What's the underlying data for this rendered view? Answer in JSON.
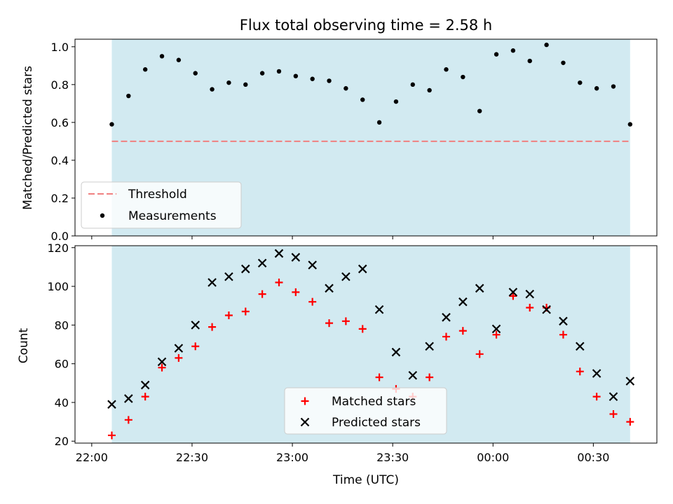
{
  "chart_data": [
    {
      "type": "scatter",
      "title": "Flux total observing time = 2.58 h",
      "ylabel": "Matched/Predicted stars",
      "xlabel": "",
      "x_unit": "minutes after 22:00 UTC",
      "xlim_minutes": [
        -5,
        169
      ],
      "ylim": [
        0,
        1.04
      ],
      "yticks": [
        0.0,
        0.2,
        0.4,
        0.6,
        0.8,
        1.0
      ],
      "ytick_labels": [
        "0.0",
        "0.2",
        "0.4",
        "0.6",
        "0.8",
        "1.0"
      ],
      "shaded_span_minutes": [
        6,
        161
      ],
      "shade_color": "#add8e6",
      "threshold": {
        "label": "Threshold",
        "value": 0.5,
        "color": "#f08080",
        "style": "dashed"
      },
      "legend": {
        "position": "lower-left",
        "entries": [
          "Threshold",
          "Measurements"
        ]
      },
      "series": [
        {
          "name": "Measurements",
          "marker": "dot",
          "color": "#000000",
          "x": [
            "22:06",
            "22:11",
            "22:16",
            "22:21",
            "22:26",
            "22:31",
            "22:36",
            "22:41",
            "22:46",
            "22:51",
            "22:56",
            "23:01",
            "23:06",
            "23:11",
            "23:16",
            "23:21",
            "23:26",
            "23:31",
            "23:36",
            "23:41",
            "23:46",
            "23:51",
            "23:56",
            "00:01",
            "00:06",
            "00:11",
            "00:16",
            "00:21",
            "00:26",
            "00:31",
            "00:36",
            "00:41"
          ],
          "y": [
            0.59,
            0.74,
            0.88,
            0.95,
            0.93,
            0.86,
            0.775,
            0.81,
            0.8,
            0.86,
            0.87,
            0.845,
            0.83,
            0.82,
            0.78,
            0.72,
            0.6,
            0.71,
            0.8,
            0.77,
            0.88,
            0.84,
            0.66,
            0.96,
            0.98,
            0.925,
            1.01,
            0.915,
            0.81,
            0.78,
            0.79,
            0.59
          ]
        }
      ]
    },
    {
      "type": "scatter",
      "title": "",
      "xlabel": "Time (UTC)",
      "ylabel": "Count",
      "x_unit": "minutes after 22:00 UTC",
      "xlim_minutes": [
        -5,
        169
      ],
      "ylim": [
        19,
        121
      ],
      "yticks": [
        20,
        40,
        60,
        80,
        100,
        120
      ],
      "ytick_labels": [
        "20",
        "40",
        "60",
        "80",
        "100",
        "120"
      ],
      "xticks_minutes": [
        0,
        30,
        60,
        90,
        120,
        150
      ],
      "xtick_labels": [
        "22:00",
        "22:30",
        "23:00",
        "23:30",
        "00:00",
        "00:30"
      ],
      "shaded_span_minutes": [
        6,
        161
      ],
      "shade_color": "#add8e6",
      "legend": {
        "position": "lower-center",
        "entries": [
          "Matched stars",
          "Predicted stars"
        ]
      },
      "series": [
        {
          "name": "Matched stars",
          "marker": "plus",
          "color": "#ff0000",
          "x": [
            "22:06",
            "22:11",
            "22:16",
            "22:21",
            "22:26",
            "22:31",
            "22:36",
            "22:41",
            "22:46",
            "22:51",
            "22:56",
            "23:01",
            "23:06",
            "23:11",
            "23:16",
            "23:21",
            "23:26",
            "23:31",
            "23:36",
            "23:41",
            "23:46",
            "23:51",
            "23:56",
            "00:01",
            "00:06",
            "00:11",
            "00:16",
            "00:21",
            "00:26",
            "00:31",
            "00:36",
            "00:41"
          ],
          "y": [
            23,
            31,
            43,
            58,
            63,
            69,
            79,
            85,
            87,
            96,
            102,
            97,
            92,
            81,
            82,
            78,
            53,
            47,
            43,
            53,
            74,
            77,
            65,
            75,
            95,
            89,
            89,
            75,
            56,
            43,
            34,
            30
          ]
        },
        {
          "name": "Predicted stars",
          "marker": "x",
          "color": "#000000",
          "x": [
            "22:06",
            "22:11",
            "22:16",
            "22:21",
            "22:26",
            "22:31",
            "22:36",
            "22:41",
            "22:46",
            "22:51",
            "22:56",
            "23:01",
            "23:06",
            "23:11",
            "23:16",
            "23:21",
            "23:26",
            "23:31",
            "23:36",
            "23:41",
            "23:46",
            "23:51",
            "23:56",
            "00:01",
            "00:06",
            "00:11",
            "00:16",
            "00:21",
            "00:26",
            "00:31",
            "00:36",
            "00:41"
          ],
          "y": [
            39,
            42,
            49,
            61,
            68,
            80,
            102,
            105,
            109,
            112,
            117,
            115,
            111,
            99,
            105,
            109,
            88,
            66,
            54,
            69,
            84,
            92,
            99,
            78,
            97,
            96,
            88,
            82,
            69,
            55,
            43,
            51
          ]
        }
      ]
    }
  ]
}
